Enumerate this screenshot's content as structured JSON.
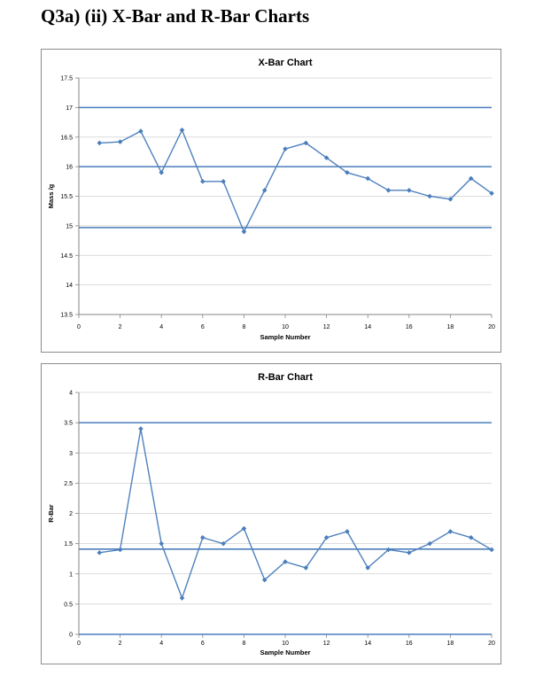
{
  "page": {
    "heading": "Q3a) (ii) X-Bar and R-Bar Charts"
  },
  "chart_data": [
    {
      "type": "line",
      "title": "X-Bar Chart",
      "xlabel": "Sample Number",
      "ylabel": "Mass /g",
      "xlim": [
        0,
        20
      ],
      "ylim": [
        13.5,
        17.5
      ],
      "xticks": [
        0,
        2,
        4,
        6,
        8,
        10,
        12,
        14,
        16,
        18,
        20
      ],
      "yticks": [
        13.5,
        14,
        14.5,
        15,
        15.5,
        16,
        16.5,
        17,
        17.5
      ],
      "grid": true,
      "legend": "none",
      "x": [
        1,
        2,
        3,
        4,
        5,
        6,
        7,
        8,
        9,
        10,
        11,
        12,
        13,
        14,
        15,
        16,
        17,
        18,
        19,
        20
      ],
      "series": [
        {
          "values": [
            16.4,
            16.42,
            16.6,
            15.9,
            16.62,
            15.75,
            15.75,
            14.9,
            15.6,
            16.3,
            16.4,
            16.15,
            15.9,
            15.8,
            15.6,
            15.6,
            15.5,
            15.45,
            15.8,
            15.55
          ]
        }
      ],
      "reference_lines": [
        17.0,
        16.0,
        14.97
      ],
      "color": "#4a7ebb",
      "line_color": "#4f81bd"
    },
    {
      "type": "line",
      "title": "R-Bar Chart",
      "xlabel": "Sample Number",
      "ylabel": "R-Bar",
      "xlim": [
        0,
        20
      ],
      "ylim": [
        0,
        4
      ],
      "xticks": [
        0,
        2,
        4,
        6,
        8,
        10,
        12,
        14,
        16,
        18,
        20
      ],
      "yticks": [
        0,
        0.5,
        1,
        1.5,
        2,
        2.5,
        3,
        3.5,
        4
      ],
      "grid": true,
      "legend": "none",
      "x": [
        1,
        2,
        3,
        4,
        5,
        6,
        7,
        8,
        9,
        10,
        11,
        12,
        13,
        14,
        15,
        16,
        17,
        18,
        19,
        20
      ],
      "series": [
        {
          "values": [
            1.35,
            1.4,
            3.4,
            1.5,
            0.6,
            1.6,
            1.5,
            1.75,
            0.9,
            1.2,
            1.1,
            1.6,
            1.7,
            1.1,
            1.4,
            1.35,
            1.5,
            1.7,
            1.6,
            1.4
          ]
        }
      ],
      "reference_lines": [
        3.5,
        1.41,
        0
      ],
      "color": "#4a7ebb",
      "line_color": "#4f81bd"
    }
  ]
}
